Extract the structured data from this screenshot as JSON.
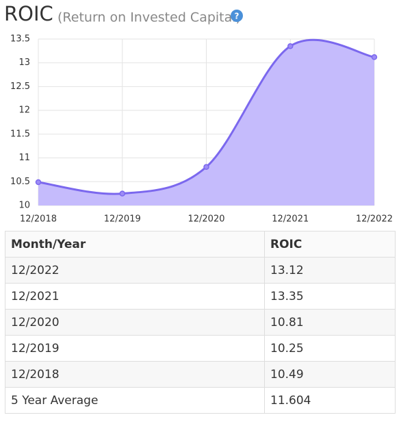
{
  "chart_data": {
    "type": "line",
    "title": "ROIC",
    "subtitle": "(Return on Invested Capital)",
    "help_icon": "?",
    "categories": [
      "12/2018",
      "12/2019",
      "12/2020",
      "12/2021",
      "12/2022"
    ],
    "values": [
      10.49,
      10.25,
      10.81,
      13.35,
      13.12
    ],
    "color": "#7b68ee",
    "fill": "#c5bbfc",
    "ylim": [
      10,
      13.5
    ],
    "yticks": [
      10,
      10.5,
      11,
      11.5,
      12,
      12.5,
      13,
      13.5
    ],
    "grid": true
  },
  "table": {
    "header": [
      "Month/Year",
      "ROIC"
    ],
    "rows": [
      [
        "12/2022",
        "13.12"
      ],
      [
        "12/2021",
        "13.35"
      ],
      [
        "12/2020",
        "10.81"
      ],
      [
        "12/2019",
        "10.25"
      ],
      [
        "12/2018",
        "10.49"
      ],
      [
        "5 Year Average",
        "11.604"
      ]
    ]
  }
}
